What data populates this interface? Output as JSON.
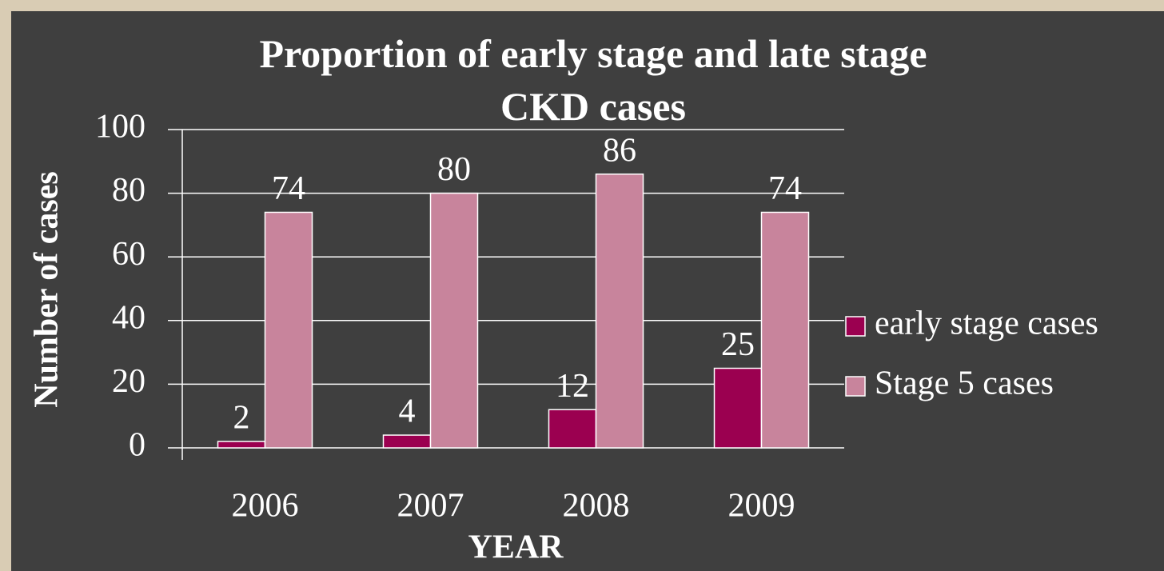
{
  "chart_data": {
    "type": "bar",
    "title": "Proportion of early stage and late stage\nCKD cases",
    "x_label": "YEAR",
    "y_label": "Number of cases",
    "categories": [
      "2006",
      "2007",
      "2008",
      "2009"
    ],
    "series": [
      {
        "name": "early stage cases",
        "color": "#9b0050",
        "values": [
          2,
          4,
          12,
          25
        ]
      },
      {
        "name": "Stage 5 cases",
        "color": "#c8849c",
        "values": [
          74,
          80,
          86,
          74
        ]
      }
    ],
    "ylim": [
      0,
      100
    ],
    "yticks": [
      0,
      20,
      40,
      60,
      80,
      100
    ],
    "grid": true,
    "legend": "right"
  }
}
